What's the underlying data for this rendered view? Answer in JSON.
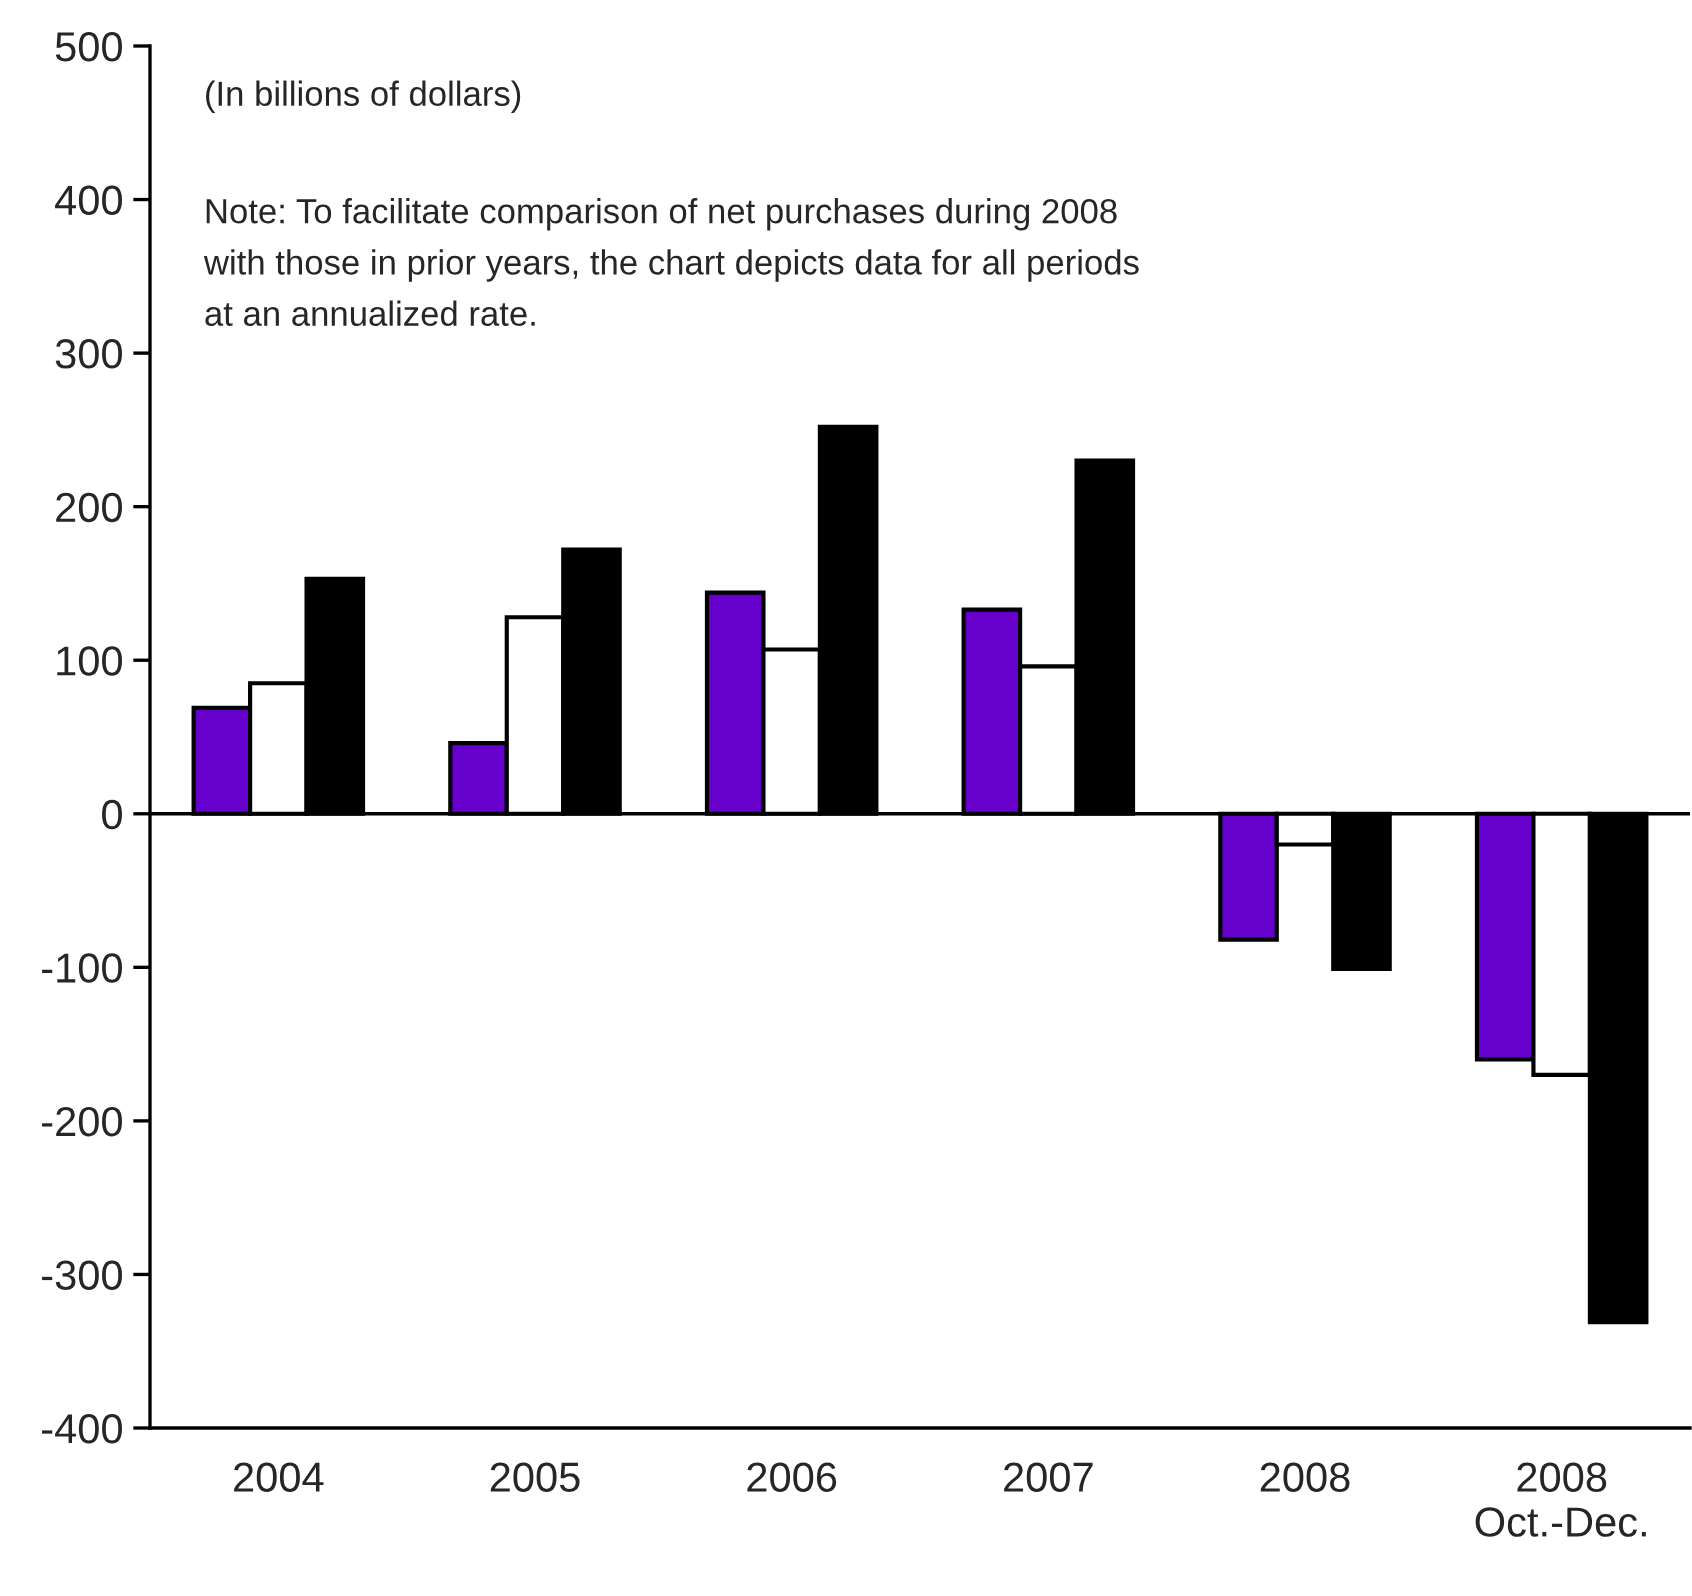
{
  "chart_data": {
    "type": "bar",
    "categories": [
      "2004",
      "2005",
      "2006",
      "2007",
      "2008",
      "2008\nOct.-Dec."
    ],
    "series": [
      {
        "color": "#6600cc",
        "values": [
          69,
          46,
          144,
          133,
          -82,
          -160
        ]
      },
      {
        "color": "#ffffff",
        "values": [
          85,
          128,
          107,
          96,
          -20,
          -170
        ]
      },
      {
        "color": "#000000",
        "values": [
          153,
          172,
          252,
          230,
          -101,
          -331
        ]
      }
    ],
    "ylim": [
      -400,
      500
    ],
    "yticks": [
      -400,
      -300,
      -200,
      -100,
      0,
      100,
      200,
      300,
      400,
      500
    ],
    "ref_lines": [
      {
        "axis": "y",
        "value": 0,
        "color": "#000000"
      }
    ],
    "annotations": [
      "(In billions of dollars)",
      "Note: To facilitate comparison of net purchases during 2008\nwith those in prior years, the chart depicts data for all periods\nat an annualized rate."
    ],
    "grid": false
  }
}
